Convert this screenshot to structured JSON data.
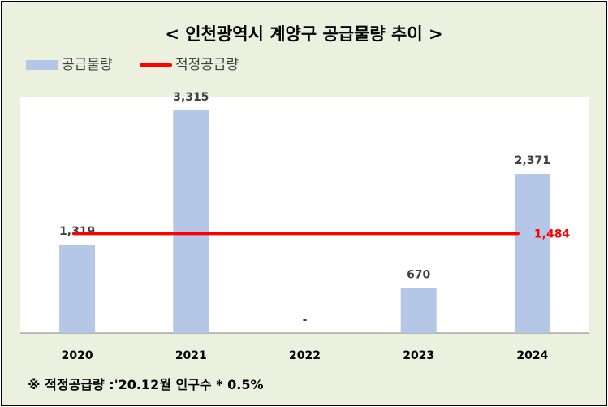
{
  "chart_data": {
    "type": "bar",
    "title": "< 인천광역시 계양구 공급물량 추이 >",
    "categories": [
      "2020",
      "2021",
      "2022",
      "2023",
      "2024"
    ],
    "series": [
      {
        "name": "공급물량",
        "type": "bar",
        "values": [
          1319,
          3315,
          0,
          670,
          2371
        ],
        "labels": [
          "1,319",
          "3,315",
          "-",
          "670",
          "2,371"
        ],
        "color": "#b4c7e7"
      },
      {
        "name": "적정공급량",
        "type": "line",
        "value": 1484,
        "label": "1,484",
        "color": "#ff0000"
      }
    ],
    "ylim": [
      0,
      3315
    ],
    "grid": false,
    "legend_position": "top-left",
    "footnote": "※ 적정공급량 :'20.12월 인구수 * 0.5%"
  },
  "colors": {
    "background": "#ebf1de",
    "plot_area": "#ffffff",
    "axis": "#808080",
    "label_text": "#404040",
    "line_label": "#ff0000"
  }
}
